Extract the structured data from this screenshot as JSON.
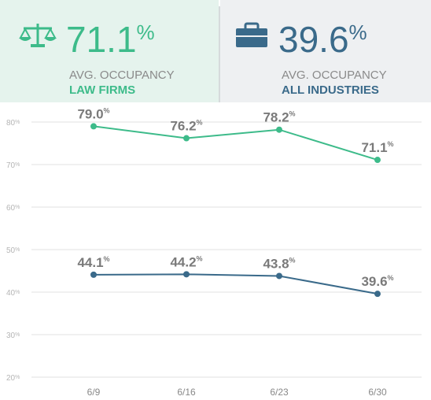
{
  "header": {
    "kpis": [
      {
        "value": "71.1%",
        "label": "AVG. OCCUPANCY",
        "group": "LAW FIRMS"
      },
      {
        "value": "39.6%",
        "label": "AVG. OCCUPANCY",
        "group": "ALL INDUSTRIES"
      }
    ]
  },
  "chart_data": {
    "type": "line",
    "categories": [
      "6/9",
      "6/16",
      "6/23",
      "6/30"
    ],
    "series": [
      {
        "color": "#3dbb8a",
        "values": [
          79.0,
          76.2,
          78.2,
          71.1
        ],
        "value_labels": [
          "79.0%",
          "76.2%",
          "78.2%",
          "71.1%"
        ]
      },
      {
        "color": "#3a6a8a",
        "values": [
          44.1,
          44.2,
          43.8,
          39.6
        ],
        "value_labels": [
          "44.1%",
          "44.2%",
          "43.8%",
          "39.6%"
        ]
      }
    ],
    "ylim": [
      20,
      80
    ],
    "yticks": [
      {
        "value": 20,
        "label": "20%"
      },
      {
        "value": 30,
        "label": "30%"
      },
      {
        "value": 40,
        "label": "40%"
      },
      {
        "value": 50,
        "label": "50%"
      },
      {
        "value": 60,
        "label": "60%"
      },
      {
        "value": 70,
        "label": "70%"
      },
      {
        "value": 80,
        "label": "80%"
      }
    ],
    "grid": true
  }
}
